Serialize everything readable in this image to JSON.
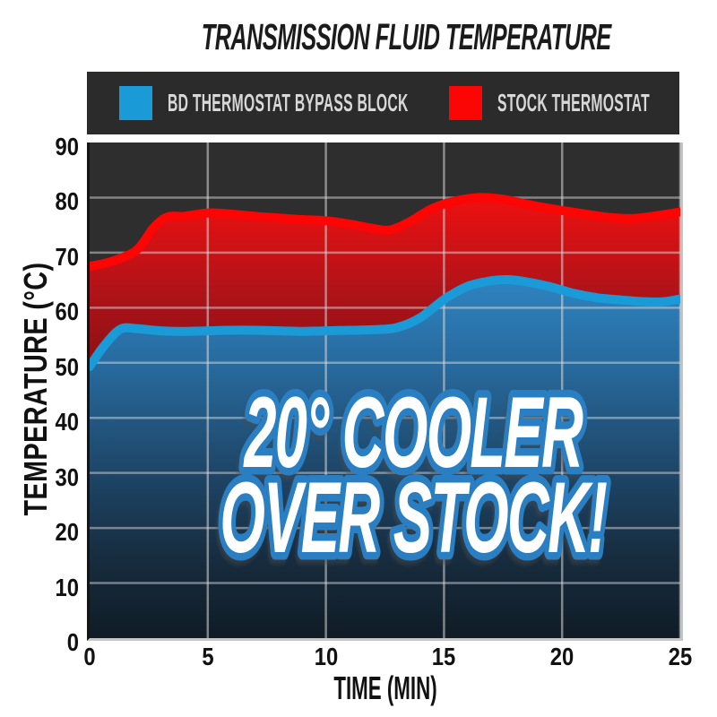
{
  "header": {
    "title": "TRANSMISSION FLUID TEMPERATURE"
  },
  "legend": {
    "items": [
      {
        "label": "BD THERMOSTAT BYPASS BLOCK",
        "color": "#1b9ad8"
      },
      {
        "label": "STOCK THERMOSTAT",
        "color": "#fb0505"
      }
    ]
  },
  "overlay": {
    "line1": "20° COOLER",
    "line2": "OVER STOCK!",
    "fill": "#ffffff",
    "outline": "#2b7fc3"
  },
  "chart_data": {
    "type": "area",
    "title": "TRANSMISSION FLUID TEMPERATURE",
    "xlabel": "TIME (MIN)",
    "ylabel": "TEMPERATURE (°C)",
    "xlim": [
      0,
      25
    ],
    "ylim": [
      0,
      90
    ],
    "xticks": [
      0,
      5,
      10,
      15,
      20,
      25
    ],
    "yticks": [
      0,
      10,
      20,
      30,
      40,
      50,
      60,
      70,
      80,
      90
    ],
    "grid": true,
    "gridline_color": "#d9d9d9",
    "plot_bg": "#2e2e2e",
    "legend_position": "top",
    "series": [
      {
        "name": "STOCK THERMOSTAT",
        "color": "#fb0505",
        "stroke_width": 10,
        "points": [
          [
            0,
            67.5
          ],
          [
            1,
            68.5
          ],
          [
            2,
            70.5
          ],
          [
            2.7,
            74.5
          ],
          [
            3.3,
            76.5
          ],
          [
            4,
            76.6
          ],
          [
            5,
            77.2
          ],
          [
            6,
            77.0
          ],
          [
            7,
            76.6
          ],
          [
            8,
            76.3
          ],
          [
            9,
            76.0
          ],
          [
            10,
            75.8
          ],
          [
            11,
            75.2
          ],
          [
            12,
            74.4
          ],
          [
            12.7,
            74.1
          ],
          [
            13.5,
            75.5
          ],
          [
            14.5,
            78.0
          ],
          [
            15.5,
            79.4
          ],
          [
            16.5,
            80.0
          ],
          [
            17.5,
            79.7
          ],
          [
            18.5,
            78.8
          ],
          [
            19.5,
            78.0
          ],
          [
            21,
            77.0
          ],
          [
            22,
            76.4
          ],
          [
            23,
            76.2
          ],
          [
            24,
            76.7
          ],
          [
            25,
            77.4
          ]
        ],
        "gradient": [
          [
            0,
            "#ee1010"
          ],
          [
            0.2,
            "#b31318"
          ],
          [
            0.45,
            "#7c1014"
          ],
          [
            0.72,
            "#4a090d"
          ],
          [
            1,
            "#2f0608"
          ]
        ]
      },
      {
        "name": "BD THERMOSTAT BYPASS BLOCK",
        "color": "#1b9ad8",
        "stroke_width": 10,
        "points": [
          [
            0,
            49.3
          ],
          [
            0.6,
            53.0
          ],
          [
            1.3,
            56.1
          ],
          [
            2,
            56.2
          ],
          [
            3,
            55.8
          ],
          [
            4,
            55.7
          ],
          [
            5,
            55.8
          ],
          [
            6,
            55.9
          ],
          [
            7,
            55.9
          ],
          [
            8,
            55.8
          ],
          [
            9,
            55.7
          ],
          [
            10,
            55.8
          ],
          [
            11,
            55.9
          ],
          [
            12,
            56.0
          ],
          [
            13,
            56.4
          ],
          [
            14,
            58.2
          ],
          [
            15,
            61.5
          ],
          [
            16,
            63.9
          ],
          [
            17,
            64.9
          ],
          [
            17.7,
            65.1
          ],
          [
            18.5,
            64.7
          ],
          [
            19.5,
            63.8
          ],
          [
            20.5,
            62.6
          ],
          [
            21.5,
            61.8
          ],
          [
            22.5,
            61.4
          ],
          [
            23.5,
            61.1
          ],
          [
            24.3,
            61.1
          ],
          [
            25,
            61.6
          ]
        ],
        "gradient": [
          [
            0,
            "#2e83c0"
          ],
          [
            0.25,
            "#27699c"
          ],
          [
            0.5,
            "#1f4a6e"
          ],
          [
            0.78,
            "#172c3e"
          ],
          [
            1,
            "#101c26"
          ]
        ]
      }
    ]
  }
}
